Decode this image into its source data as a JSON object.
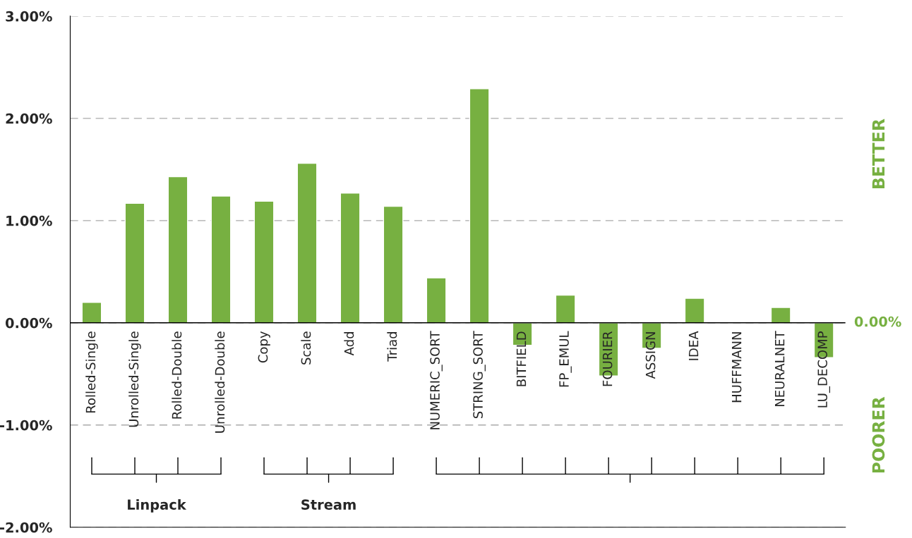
{
  "chart_data": {
    "type": "bar",
    "categories": [
      "Rolled-Single",
      "Unrolled-Single",
      "Rolled-Double",
      "Unrolled-Double",
      "Copy",
      "Scale",
      "Add",
      "Triad",
      "NUMERIC_SORT",
      "STRING_SORT",
      "BITFIELD",
      "FP_EMUL",
      "FOURIER",
      "ASSIGN",
      "IDEA",
      "HUFFMANN",
      "NEURALNET",
      "LU_DECOMP"
    ],
    "values": [
      0.2,
      1.17,
      1.43,
      1.24,
      1.19,
      1.56,
      1.27,
      1.14,
      0.44,
      2.29,
      -0.22,
      0.27,
      -0.52,
      -0.25,
      0.24,
      null,
      0.15,
      -0.34
    ],
    "color": "#77b041",
    "ylim": [
      -2,
      3
    ],
    "yticks": [
      {
        "value": -2,
        "label": "-2.00%"
      },
      {
        "value": -1,
        "label": "-1.00%"
      },
      {
        "value": 0,
        "label": "0.00%"
      },
      {
        "value": 1,
        "label": "1.00%"
      },
      {
        "value": 2,
        "label": "2.00%"
      },
      {
        "value": 3,
        "label": "3.00%"
      }
    ],
    "grid": "y",
    "line_style": "dashed",
    "annotations": [
      "0.00%",
      "BETTER",
      "POORER",
      "Linpack",
      "Stream"
    ]
  }
}
